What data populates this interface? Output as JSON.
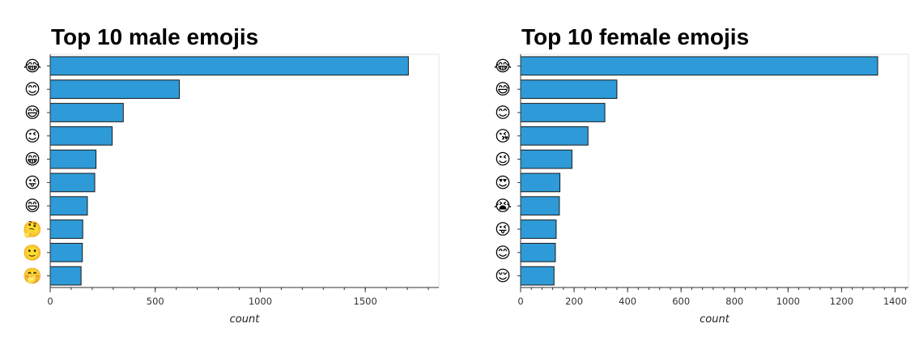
{
  "chart_data": [
    {
      "type": "bar",
      "orientation": "horizontal",
      "title": "Top 10 male emojis",
      "xlabel": "count",
      "ylabel": "",
      "categories": [
        "😂",
        "😊",
        "😅",
        "😉",
        "😁",
        "😜",
        "😄",
        "🤔",
        "🙂",
        "🤭"
      ],
      "values": [
        1705,
        615,
        348,
        295,
        218,
        212,
        177,
        155,
        153,
        147
      ],
      "xlim": [
        0,
        1850
      ],
      "xticks": [
        0,
        500,
        1000,
        1500
      ],
      "xtick_labels": [
        "0",
        "500",
        "1000",
        "1500"
      ],
      "minor_tick_step": 100,
      "bar_color": "#2e9bd8",
      "grid": false
    },
    {
      "type": "bar",
      "orientation": "horizontal",
      "title": "Top 10 female emojis",
      "xlabel": "count",
      "ylabel": "",
      "categories": [
        "😂",
        "😅",
        "😊",
        "😘",
        "😉",
        "😍",
        "😭",
        "😜",
        "😊",
        "😌"
      ],
      "values": [
        1335,
        360,
        315,
        252,
        192,
        147,
        145,
        133,
        130,
        125
      ],
      "xlim": [
        0,
        1450
      ],
      "xticks": [
        0,
        200,
        400,
        600,
        800,
        1000,
        1200,
        1400
      ],
      "xtick_labels": [
        "0",
        "200",
        "400",
        "600",
        "800",
        "1000",
        "1200",
        "1400"
      ],
      "minor_tick_step": 40,
      "bar_color": "#2e9bd8",
      "grid": false
    }
  ]
}
